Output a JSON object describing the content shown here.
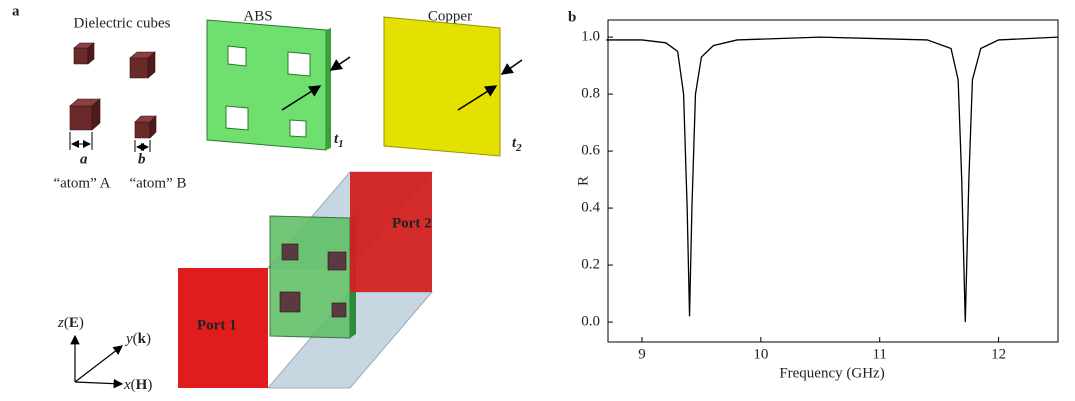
{
  "panel_labels": [
    "a",
    "b"
  ],
  "diagram": {
    "cubes_title": "Dielectric cubes",
    "abs_label": "ABS",
    "copper_label": "Copper",
    "t1": {
      "base": "t",
      "sub": "1"
    },
    "t2": {
      "base": "t",
      "sub": "2"
    },
    "cube_a": "a",
    "cube_b": "b",
    "atom_a": "“atom” A",
    "atom_b": "“atom” B",
    "port1": "Port 1",
    "port2": "Port 2",
    "axes": [
      {
        "axis": "z",
        "field": "E"
      },
      {
        "axis": "y",
        "field": "k"
      },
      {
        "axis": "x",
        "field": "H"
      }
    ]
  },
  "chart_data": {
    "type": "line",
    "xlabel": "Frequency (GHz)",
    "ylabel": "R",
    "x": [
      8.7,
      9.0,
      9.2,
      9.3,
      9.35,
      9.38,
      9.4,
      9.42,
      9.45,
      9.5,
      9.6,
      9.8,
      10.5,
      11.4,
      11.6,
      11.66,
      11.69,
      11.72,
      11.75,
      11.78,
      11.85,
      12.0,
      12.5
    ],
    "series": [
      {
        "color": "#000000",
        "values": [
          0.99,
          0.99,
          0.98,
          0.95,
          0.8,
          0.4,
          0.02,
          0.4,
          0.8,
          0.93,
          0.97,
          0.99,
          1.0,
          0.99,
          0.96,
          0.85,
          0.5,
          0.0,
          0.5,
          0.85,
          0.96,
          0.99,
          1.0
        ]
      }
    ],
    "xlim": [
      8.714,
      12.5
    ],
    "ylim": [
      -0.07,
      1.06
    ],
    "xticks": [
      9,
      10,
      11,
      12
    ],
    "yticks": [
      {
        "value": 0,
        "label": "0.0"
      },
      {
        "value": 0.2,
        "label": "0.2"
      },
      {
        "value": 0.4,
        "label": "0.4"
      },
      {
        "value": 0.6,
        "label": "0.6"
      },
      {
        "value": 0.8,
        "label": "0.8"
      },
      {
        "value": 1,
        "label": "1.0"
      }
    ]
  }
}
